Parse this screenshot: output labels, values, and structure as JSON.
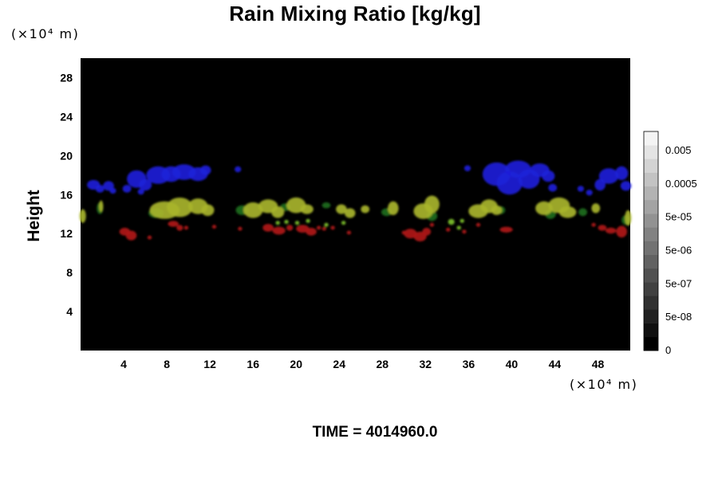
{
  "chart_data": {
    "type": "heatmap",
    "title": "Rain Mixing Ratio [kg/kg]",
    "ylabel": "Height",
    "xlabel": "",
    "x_unit": "(×10⁴ m)",
    "y_unit": "(×10⁴ m)",
    "xlim": [
      0,
      51
    ],
    "ylim": [
      0,
      30
    ],
    "x_ticks": [
      4,
      8,
      12,
      16,
      20,
      24,
      28,
      32,
      36,
      40,
      44,
      48
    ],
    "y_ticks": [
      4,
      8,
      12,
      16,
      20,
      24,
      28
    ],
    "background_color": "#000000",
    "colorbar": {
      "labels": [
        "0",
        "5e-08",
        "5e-07",
        "5e-06",
        "5e-05",
        "0.0005",
        "0.005"
      ],
      "steps": 16,
      "color_low": "#000000",
      "color_high": "#f4f4f4"
    },
    "features": [
      {
        "color": "#1d20d8",
        "points": [
          [
            1.2,
            17.0,
            0.6,
            0.5
          ],
          [
            1.8,
            16.6,
            0.4,
            0.4
          ],
          [
            2.6,
            16.9,
            0.5,
            0.5
          ],
          [
            3.0,
            16.4,
            0.3,
            0.3
          ],
          [
            4.3,
            16.6,
            0.4,
            0.4
          ],
          [
            5.2,
            17.6,
            0.9,
            0.9
          ],
          [
            6.0,
            17.0,
            0.6,
            0.6
          ],
          [
            5.6,
            16.3,
            0.3,
            0.3
          ],
          [
            7.2,
            18.0,
            1.1,
            0.9
          ],
          [
            8.4,
            18.1,
            0.9,
            0.8
          ],
          [
            9.6,
            18.3,
            1.1,
            0.8
          ],
          [
            10.9,
            18.1,
            0.9,
            0.7
          ],
          [
            11.6,
            18.5,
            0.5,
            0.5
          ],
          [
            14.6,
            18.6,
            0.3,
            0.3
          ],
          [
            35.9,
            18.7,
            0.3,
            0.3
          ],
          [
            38.6,
            18.1,
            1.3,
            1.2
          ],
          [
            39.8,
            17.2,
            1.2,
            1.2
          ],
          [
            40.6,
            18.6,
            1.2,
            0.9
          ],
          [
            41.6,
            17.6,
            1.0,
            1.0
          ],
          [
            42.6,
            18.5,
            0.9,
            0.7
          ],
          [
            43.4,
            17.9,
            0.6,
            0.6
          ],
          [
            43.8,
            16.7,
            0.4,
            0.4
          ],
          [
            46.4,
            16.6,
            0.3,
            0.3
          ],
          [
            47.2,
            16.2,
            0.3,
            0.3
          ],
          [
            48.2,
            17.0,
            0.5,
            0.6
          ],
          [
            49.0,
            17.9,
            0.9,
            0.8
          ],
          [
            50.2,
            18.2,
            0.6,
            0.7
          ],
          [
            50.6,
            16.9,
            0.5,
            0.5
          ]
        ]
      },
      {
        "color": "#1c6e1c",
        "points": [
          [
            1.8,
            14.6,
            0.3,
            0.6
          ],
          [
            7.0,
            14.1,
            0.7,
            0.5
          ],
          [
            15.0,
            14.4,
            0.6,
            0.5
          ],
          [
            19.0,
            14.7,
            0.5,
            0.4
          ],
          [
            22.8,
            14.9,
            0.4,
            0.3
          ],
          [
            28.4,
            14.2,
            0.5,
            0.4
          ],
          [
            32.6,
            13.8,
            0.5,
            0.5
          ],
          [
            39.0,
            14.4,
            0.4,
            0.4
          ],
          [
            43.6,
            14.0,
            0.5,
            0.5
          ],
          [
            46.6,
            14.2,
            0.4,
            0.4
          ],
          [
            50.6,
            13.4,
            0.4,
            0.5
          ]
        ]
      },
      {
        "color": "#a8b42a",
        "points": [
          [
            0.2,
            13.8,
            0.3,
            0.7
          ],
          [
            1.9,
            14.8,
            0.2,
            0.6
          ],
          [
            7.8,
            14.4,
            1.4,
            0.9
          ],
          [
            9.2,
            14.7,
            1.2,
            1.0
          ],
          [
            10.9,
            14.8,
            0.9,
            0.8
          ],
          [
            11.8,
            14.4,
            0.6,
            0.6
          ],
          [
            16.0,
            14.4,
            0.9,
            0.8
          ],
          [
            17.4,
            14.8,
            0.9,
            0.7
          ],
          [
            18.3,
            14.2,
            0.6,
            0.6
          ],
          [
            20.0,
            14.9,
            0.9,
            0.8
          ],
          [
            21.0,
            14.5,
            0.6,
            0.5
          ],
          [
            24.2,
            14.5,
            0.5,
            0.5
          ],
          [
            25.0,
            14.1,
            0.5,
            0.5
          ],
          [
            26.4,
            14.5,
            0.4,
            0.4
          ],
          [
            29.0,
            14.6,
            0.5,
            0.7
          ],
          [
            31.8,
            14.3,
            0.9,
            0.8
          ],
          [
            32.6,
            15.0,
            0.7,
            0.9
          ],
          [
            36.9,
            14.3,
            0.9,
            0.7
          ],
          [
            37.9,
            14.8,
            0.8,
            0.7
          ],
          [
            38.6,
            14.4,
            0.5,
            0.5
          ],
          [
            43.0,
            14.6,
            0.8,
            0.7
          ],
          [
            44.4,
            14.9,
            1.0,
            0.8
          ],
          [
            45.2,
            14.2,
            0.8,
            0.6
          ],
          [
            47.8,
            14.6,
            0.4,
            0.5
          ],
          [
            50.8,
            13.6,
            0.3,
            0.8
          ]
        ]
      },
      {
        "color": "#7ec22a",
        "points": [
          [
            18.3,
            13.1,
            0.2,
            0.2
          ],
          [
            19.1,
            13.2,
            0.2,
            0.2
          ],
          [
            20.1,
            13.1,
            0.2,
            0.2
          ],
          [
            21.1,
            13.3,
            0.2,
            0.2
          ],
          [
            22.8,
            12.9,
            0.2,
            0.2
          ],
          [
            24.4,
            13.1,
            0.2,
            0.2
          ],
          [
            34.4,
            13.2,
            0.3,
            0.3
          ],
          [
            35.1,
            12.6,
            0.2,
            0.2
          ],
          [
            35.4,
            13.3,
            0.2,
            0.2
          ]
        ]
      },
      {
        "color": "#b01a1a",
        "points": [
          [
            4.1,
            12.2,
            0.5,
            0.4
          ],
          [
            4.7,
            11.8,
            0.5,
            0.5
          ],
          [
            6.4,
            11.6,
            0.2,
            0.2
          ],
          [
            8.6,
            13.0,
            0.5,
            0.3
          ],
          [
            9.2,
            12.6,
            0.3,
            0.3
          ],
          [
            9.8,
            12.6,
            0.2,
            0.2
          ],
          [
            12.4,
            12.7,
            0.2,
            0.2
          ],
          [
            14.8,
            12.5,
            0.2,
            0.2
          ],
          [
            17.4,
            12.6,
            0.5,
            0.4
          ],
          [
            18.4,
            12.3,
            0.6,
            0.4
          ],
          [
            19.4,
            12.6,
            0.3,
            0.3
          ],
          [
            20.6,
            12.5,
            0.6,
            0.4
          ],
          [
            21.4,
            12.2,
            0.5,
            0.4
          ],
          [
            22.1,
            12.6,
            0.2,
            0.2
          ],
          [
            22.6,
            12.5,
            0.2,
            0.2
          ],
          [
            23.4,
            12.6,
            0.2,
            0.2
          ],
          [
            24.9,
            12.1,
            0.2,
            0.2
          ],
          [
            30.6,
            12.0,
            0.6,
            0.5
          ],
          [
            31.5,
            11.7,
            0.6,
            0.5
          ],
          [
            32.1,
            12.2,
            0.4,
            0.4
          ],
          [
            30.0,
            12.1,
            0.2,
            0.2
          ],
          [
            32.6,
            12.9,
            0.2,
            0.2
          ],
          [
            34.1,
            12.4,
            0.2,
            0.2
          ],
          [
            35.6,
            12.2,
            0.2,
            0.2
          ],
          [
            36.9,
            12.9,
            0.2,
            0.2
          ],
          [
            39.5,
            12.4,
            0.6,
            0.3
          ],
          [
            48.4,
            12.6,
            0.4,
            0.3
          ],
          [
            49.2,
            12.3,
            0.5,
            0.3
          ],
          [
            50.2,
            12.2,
            0.5,
            0.6
          ],
          [
            47.6,
            12.9,
            0.2,
            0.2
          ]
        ]
      }
    ]
  },
  "footer": {
    "time_label": "TIME = 4014960.0"
  }
}
